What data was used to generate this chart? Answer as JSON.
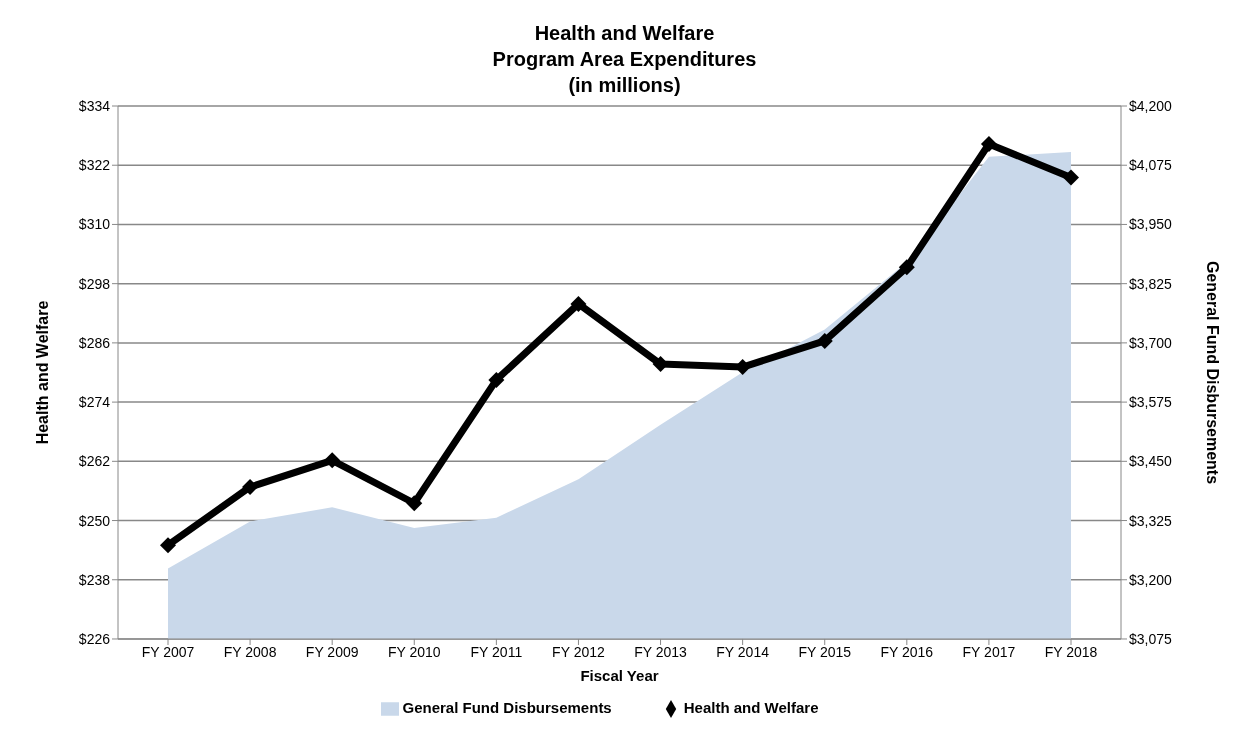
{
  "chart_data": {
    "type": "line",
    "title": "Health and Welfare\nProgram Area Expenditures\n(in millions)",
    "xlabel": "Fiscal Year",
    "ylabel": "Health and Welfare",
    "y2label": "General Fund Disbursements",
    "categories": [
      "FY 2007",
      "FY 2008",
      "FY 2009",
      "FY 2010",
      "FY 2011",
      "FY 2012",
      "FY 2013",
      "FY 2014",
      "FY 2015",
      "FY 2016",
      "FY 2017",
      "FY 2018"
    ],
    "series": [
      {
        "name": "General Fund Disbursements",
        "type": "area",
        "axis": "y2",
        "color": "#c9d8ea",
        "values": [
          3224,
          3323,
          3353,
          3309,
          3331,
          3412,
          3527,
          3638,
          3728,
          3870,
          4093,
          4103
        ]
      },
      {
        "name": "Health and Welfare",
        "marker": "diamond",
        "color": "#000000",
        "values": [
          245,
          256.8,
          262.2,
          253.5,
          278.5,
          293.9,
          281.7,
          281.1,
          286.4,
          301.3,
          326.3,
          319.5
        ]
      }
    ],
    "ylim": [
      226,
      334
    ],
    "yticks": [
      {
        "value": 226,
        "label": "$226"
      },
      {
        "value": 238,
        "label": "$238"
      },
      {
        "value": 250,
        "label": "$250"
      },
      {
        "value": 262,
        "label": "$262"
      },
      {
        "value": 274,
        "label": "$274"
      },
      {
        "value": 286,
        "label": "$286"
      },
      {
        "value": 298,
        "label": "$298"
      },
      {
        "value": 310,
        "label": "$310"
      },
      {
        "value": 322,
        "label": "$322"
      },
      {
        "value": 334,
        "label": "$334"
      }
    ],
    "y2lim": [
      3075,
      4200
    ],
    "y2ticks": [
      {
        "value": 3075,
        "label": "$3,075"
      },
      {
        "value": 3200,
        "label": "$3,200"
      },
      {
        "value": 3325,
        "label": "$3,325"
      },
      {
        "value": 3450,
        "label": "$3,450"
      },
      {
        "value": 3575,
        "label": "$3,575"
      },
      {
        "value": 3700,
        "label": "$3,700"
      },
      {
        "value": 3825,
        "label": "$3,825"
      },
      {
        "value": 3950,
        "label": "$3,950"
      },
      {
        "value": 4075,
        "label": "$4,075"
      },
      {
        "value": 4200,
        "label": "$4,200"
      }
    ],
    "grid": "y",
    "legend": "bottom",
    "line_style": "solid"
  }
}
